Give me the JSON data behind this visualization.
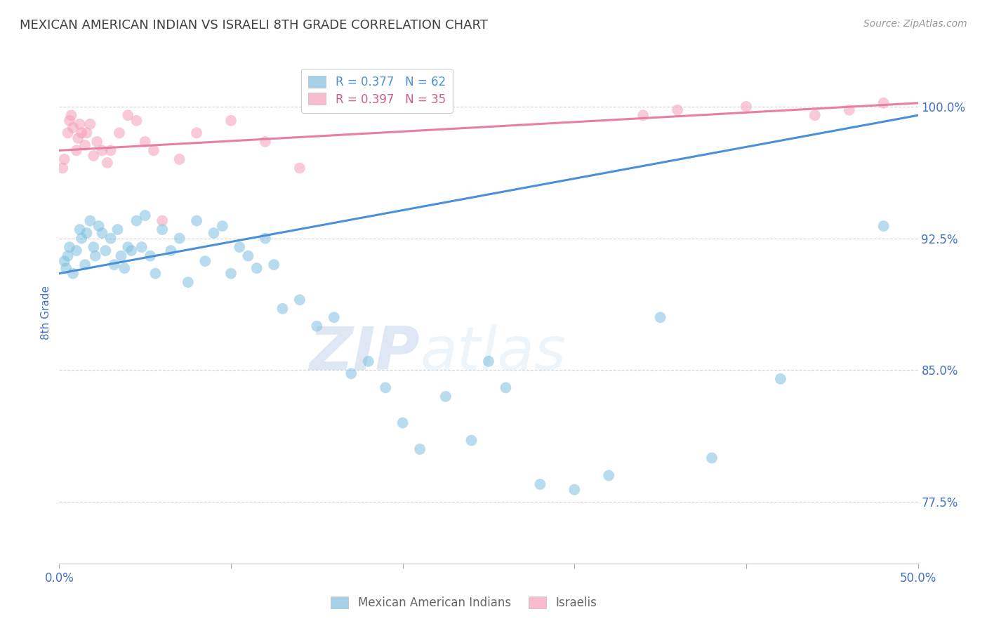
{
  "title": "MEXICAN AMERICAN INDIAN VS ISRAELI 8TH GRADE CORRELATION CHART",
  "source": "Source: ZipAtlas.com",
  "ylabel": "8th Grade",
  "x_lim": [
    0.0,
    50.0
  ],
  "y_lim": [
    74.0,
    102.5
  ],
  "y_ticks": [
    77.5,
    85.0,
    92.5,
    100.0
  ],
  "x_ticks": [
    0.0,
    10.0,
    20.0,
    30.0,
    40.0,
    50.0
  ],
  "legend_r_blue": "R = 0.377",
  "legend_n_blue": "N = 62",
  "legend_r_pink": "R = 0.397",
  "legend_n_pink": "N = 35",
  "legend_label_blue": "Mexican American Indians",
  "legend_label_pink": "Israelis",
  "blue_color": "#7fbfdf",
  "pink_color": "#f4a0b8",
  "blue_line_color": "#4a90d9",
  "pink_line_color": "#e87fa0",
  "blue_x": [
    0.3,
    0.4,
    0.5,
    0.6,
    0.8,
    1.0,
    1.2,
    1.3,
    1.5,
    1.6,
    1.8,
    2.0,
    2.1,
    2.3,
    2.5,
    2.7,
    3.0,
    3.2,
    3.4,
    3.6,
    3.8,
    4.0,
    4.2,
    4.5,
    4.8,
    5.0,
    5.3,
    5.6,
    6.0,
    6.5,
    7.0,
    7.5,
    8.0,
    8.5,
    9.0,
    9.5,
    10.0,
    10.5,
    11.0,
    11.5,
    12.0,
    12.5,
    13.0,
    14.0,
    15.0,
    16.0,
    17.0,
    18.0,
    19.0,
    20.0,
    21.0,
    22.5,
    24.0,
    25.0,
    26.0,
    28.0,
    30.0,
    32.0,
    35.0,
    38.0,
    42.0,
    48.0
  ],
  "blue_y": [
    91.2,
    90.8,
    91.5,
    92.0,
    90.5,
    91.8,
    93.0,
    92.5,
    91.0,
    92.8,
    93.5,
    92.0,
    91.5,
    93.2,
    92.8,
    91.8,
    92.5,
    91.0,
    93.0,
    91.5,
    90.8,
    92.0,
    91.8,
    93.5,
    92.0,
    93.8,
    91.5,
    90.5,
    93.0,
    91.8,
    92.5,
    90.0,
    93.5,
    91.2,
    92.8,
    93.2,
    90.5,
    92.0,
    91.5,
    90.8,
    92.5,
    91.0,
    88.5,
    89.0,
    87.5,
    88.0,
    84.8,
    85.5,
    84.0,
    82.0,
    80.5,
    83.5,
    81.0,
    85.5,
    84.0,
    78.5,
    78.2,
    79.0,
    88.0,
    80.0,
    84.5,
    93.2
  ],
  "pink_x": [
    0.2,
    0.3,
    0.5,
    0.6,
    0.7,
    0.8,
    1.0,
    1.1,
    1.2,
    1.3,
    1.5,
    1.6,
    1.8,
    2.0,
    2.2,
    2.5,
    2.8,
    3.0,
    3.5,
    4.0,
    4.5,
    5.0,
    5.5,
    6.0,
    7.0,
    8.0,
    10.0,
    12.0,
    14.0,
    34.0,
    36.0,
    40.0,
    44.0,
    46.0,
    48.0
  ],
  "pink_y": [
    96.5,
    97.0,
    98.5,
    99.2,
    99.5,
    98.8,
    97.5,
    98.2,
    99.0,
    98.5,
    97.8,
    98.5,
    99.0,
    97.2,
    98.0,
    97.5,
    96.8,
    97.5,
    98.5,
    99.5,
    99.2,
    98.0,
    97.5,
    93.5,
    97.0,
    98.5,
    99.2,
    98.0,
    96.5,
    99.5,
    99.8,
    100.0,
    99.5,
    99.8,
    100.2
  ],
  "blue_trendline_x": [
    0.0,
    50.0
  ],
  "blue_trendline_y": [
    90.5,
    99.5
  ],
  "pink_trendline_x": [
    0.0,
    50.0
  ],
  "pink_trendline_y": [
    97.5,
    100.2
  ],
  "watermark_zip": "ZIP",
  "watermark_atlas": "atlas",
  "background_color": "#ffffff",
  "grid_color": "#d0d0d0",
  "title_color": "#404040",
  "axis_label_color": "#4472c4",
  "tick_label_color": "#4472c4",
  "source_color": "#999999"
}
